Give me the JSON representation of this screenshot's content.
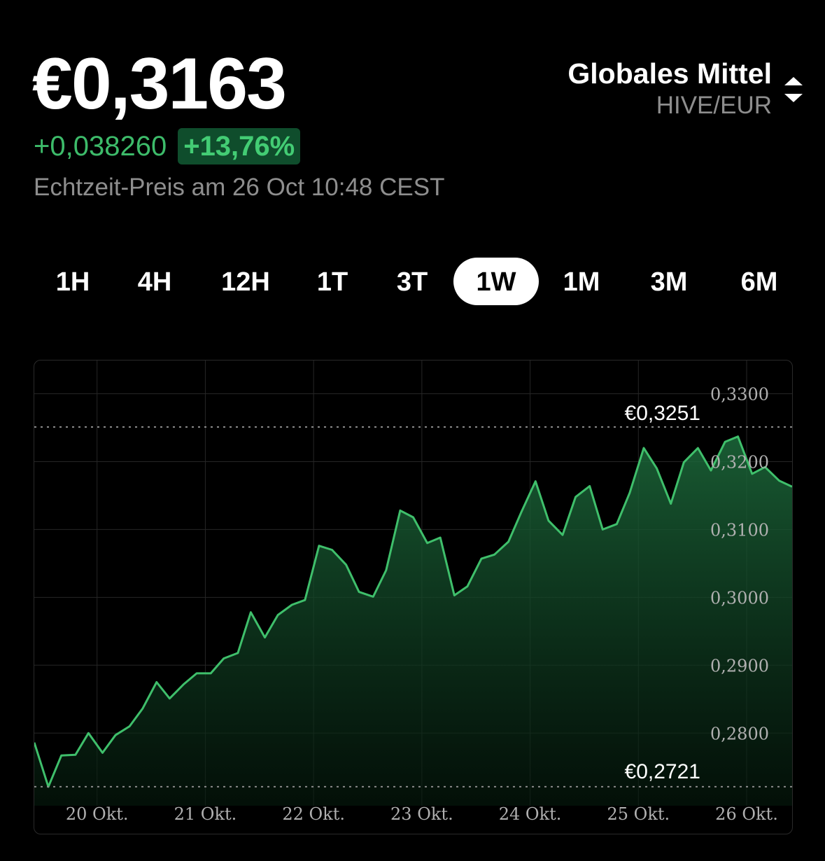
{
  "header": {
    "price": "€0,3163",
    "change_abs": "+0,038260",
    "change_pct": "+13,76%",
    "timestamp": "Echtzeit-Preis am 26 Oct 10:48 CEST"
  },
  "source": {
    "name": "Globales Mittel",
    "pair": "HIVE/EUR",
    "icon": "updown-icon"
  },
  "tabs": [
    {
      "label": "1H",
      "active": false
    },
    {
      "label": "4H",
      "active": false
    },
    {
      "label": "12H",
      "active": false
    },
    {
      "label": "1T",
      "active": false
    },
    {
      "label": "3T",
      "active": false
    },
    {
      "label": "1W",
      "active": true
    },
    {
      "label": "1M",
      "active": false
    },
    {
      "label": "3M",
      "active": false
    },
    {
      "label": "6M",
      "active": false
    }
  ],
  "colors": {
    "background": "#000000",
    "accent_green": "#43cc74",
    "badge_bg": "#0f4d2c",
    "muted": "#8e8e8e",
    "grid": "#2a2a2a"
  },
  "chart_data": {
    "type": "area",
    "x_tick_labels": [
      "20 Okt.",
      "21 Okt.",
      "22 Okt.",
      "23 Okt.",
      "24 Okt.",
      "25 Okt.",
      "26 Okt."
    ],
    "y_tick_labels": [
      "0,3300",
      "0,3200",
      "0,3100",
      "0,3000",
      "0,2900",
      "0,2800"
    ],
    "y_ticks": [
      0.33,
      0.32,
      0.31,
      0.3,
      0.29,
      0.28
    ],
    "ylim": [
      0.2693,
      0.3349
    ],
    "xlim": [
      19.42,
      26.42
    ],
    "high_label": "€0,3251",
    "low_label": "€0,2721",
    "high": 0.3251,
    "low": 0.2721,
    "grid": true,
    "x": [
      19.42,
      19.55,
      19.67,
      19.8,
      19.92,
      20.05,
      20.17,
      20.3,
      20.42,
      20.55,
      20.67,
      20.8,
      20.92,
      21.05,
      21.17,
      21.3,
      21.42,
      21.55,
      21.67,
      21.8,
      21.92,
      22.05,
      22.17,
      22.3,
      22.42,
      22.55,
      22.67,
      22.8,
      22.92,
      23.05,
      23.17,
      23.3,
      23.42,
      23.55,
      23.67,
      23.8,
      23.92,
      24.05,
      24.17,
      24.3,
      24.42,
      24.55,
      24.67,
      24.8,
      24.92,
      25.05,
      25.17,
      25.3,
      25.42,
      25.55,
      25.67,
      25.8,
      25.92,
      26.05,
      26.17,
      26.3,
      26.42
    ],
    "y": [
      0.2786,
      0.2721,
      0.2767,
      0.2768,
      0.28,
      0.2771,
      0.2797,
      0.281,
      0.2836,
      0.2875,
      0.2851,
      0.2872,
      0.2888,
      0.2888,
      0.291,
      0.2918,
      0.2978,
      0.2941,
      0.2974,
      0.2989,
      0.2996,
      0.3076,
      0.307,
      0.3048,
      0.3008,
      0.3001,
      0.304,
      0.3128,
      0.3118,
      0.308,
      0.3088,
      0.3003,
      0.3016,
      0.3057,
      0.3063,
      0.3082,
      0.3126,
      0.3171,
      0.3113,
      0.3092,
      0.3148,
      0.3164,
      0.31,
      0.3108,
      0.3154,
      0.322,
      0.319,
      0.3138,
      0.3199,
      0.322,
      0.3187,
      0.3229,
      0.3237,
      0.3182,
      0.3192,
      0.3172,
      0.3163
    ]
  }
}
